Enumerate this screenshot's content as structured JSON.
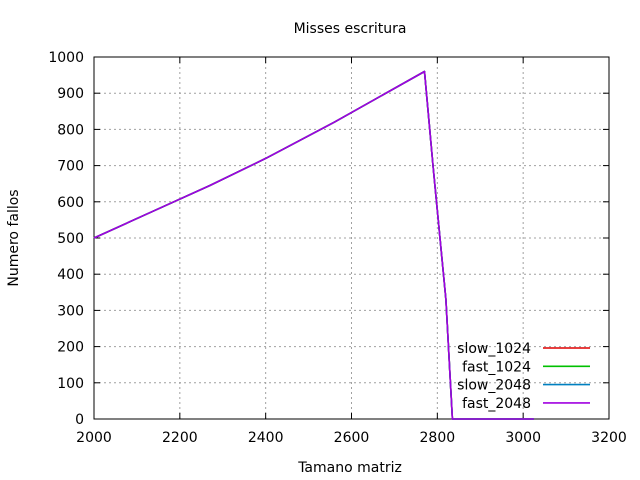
{
  "chart_data": {
    "type": "line",
    "title": "Misses escritura",
    "xlabel": "Tamano matriz",
    "ylabel": "Numero fallos",
    "xlim": [
      2000,
      3200
    ],
    "ylim": [
      0,
      1000
    ],
    "xticks": [
      2000,
      2200,
      2400,
      2600,
      2800,
      3000,
      3200
    ],
    "yticks": [
      0,
      100,
      200,
      300,
      400,
      500,
      600,
      700,
      800,
      900,
      1000
    ],
    "grid": true,
    "legend_position": "bottom-right",
    "series": [
      {
        "name": "slow_1024",
        "color": "#e00000",
        "x": [
          2000,
          2130,
          2270,
          2400,
          2560,
          2770,
          2790,
          2820,
          2835,
          2900,
          3000,
          3025
        ],
        "y": [
          500,
          570,
          645,
          720,
          820,
          960,
          700,
          330,
          0,
          0,
          0,
          0
        ]
      },
      {
        "name": "fast_1024",
        "color": "#00c000",
        "x": [
          2000,
          2130,
          2270,
          2400,
          2560,
          2770,
          2790,
          2820,
          2835,
          2900,
          3000,
          3025
        ],
        "y": [
          500,
          570,
          645,
          720,
          820,
          960,
          700,
          330,
          0,
          0,
          0,
          0
        ]
      },
      {
        "name": "slow_2048",
        "color": "#0080c0",
        "x": [
          2000,
          2130,
          2270,
          2400,
          2560,
          2770,
          2790,
          2820,
          2835,
          2900,
          3000,
          3025
        ],
        "y": [
          500,
          570,
          645,
          720,
          820,
          960,
          700,
          330,
          0,
          0,
          0,
          0
        ]
      },
      {
        "name": "fast_2048",
        "color": "#a000e0",
        "x": [
          2000,
          2130,
          2270,
          2400,
          2560,
          2770,
          2790,
          2820,
          2835,
          2900,
          3000,
          3025
        ],
        "y": [
          500,
          570,
          645,
          720,
          820,
          960,
          700,
          330,
          0,
          0,
          0,
          0
        ]
      }
    ]
  }
}
